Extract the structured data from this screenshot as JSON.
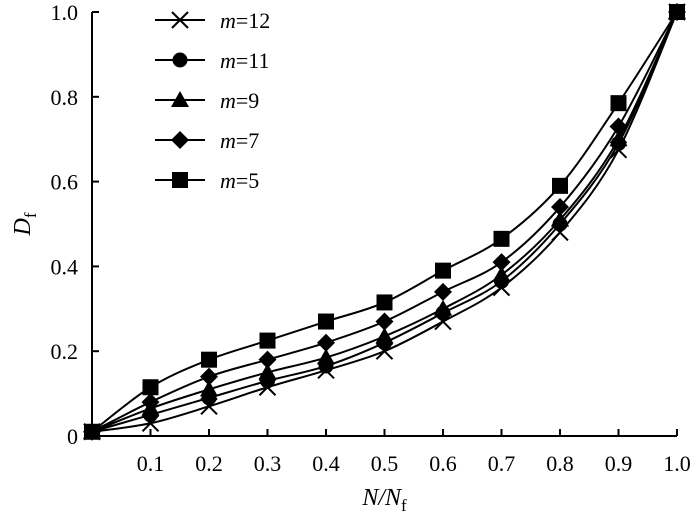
{
  "chart_data": {
    "type": "line",
    "title": "",
    "xlabel": {
      "main": "N/N",
      "sub": "f"
    },
    "ylabel": {
      "main": "D",
      "sub": "f"
    },
    "xlim": [
      0,
      1.0
    ],
    "ylim": [
      0,
      1.0
    ],
    "x": [
      0,
      0.1,
      0.2,
      0.3,
      0.4,
      0.5,
      0.6,
      0.7,
      0.8,
      0.9,
      1.0
    ],
    "x_tick_labels": [
      "0.1",
      "0.2",
      "0.3",
      "0.4",
      "0.5",
      "0.6",
      "0.7",
      "0.8",
      "0.9",
      "1.0"
    ],
    "y_tick_labels": [
      "0",
      "0.2",
      "0.4",
      "0.6",
      "0.8",
      "1.0"
    ],
    "grid": false,
    "legend_position": "top-left",
    "series": [
      {
        "name": "m=12",
        "m_var": "m",
        "m_val": "=12",
        "marker": "x",
        "values": [
          0.01,
          0.03,
          0.07,
          0.115,
          0.155,
          0.2,
          0.27,
          0.35,
          0.48,
          0.675,
          1.0
        ]
      },
      {
        "name": "m=11",
        "m_var": "m",
        "m_val": "=11",
        "marker": "circle",
        "values": [
          0.01,
          0.05,
          0.09,
          0.13,
          0.165,
          0.22,
          0.29,
          0.365,
          0.5,
          0.69,
          1.0
        ]
      },
      {
        "name": "m=9",
        "m_var": "m",
        "m_val": "=9",
        "marker": "triangle",
        "values": [
          0.01,
          0.065,
          0.11,
          0.15,
          0.185,
          0.235,
          0.3,
          0.38,
          0.51,
          0.7,
          1.0
        ]
      },
      {
        "name": "m=7",
        "m_var": "m",
        "m_val": "=7",
        "marker": "diamond",
        "values": [
          0.01,
          0.08,
          0.14,
          0.18,
          0.22,
          0.27,
          0.34,
          0.41,
          0.54,
          0.73,
          1.0
        ]
      },
      {
        "name": "m=5",
        "m_var": "m",
        "m_val": "=5",
        "marker": "square",
        "values": [
          0.01,
          0.115,
          0.18,
          0.225,
          0.27,
          0.315,
          0.39,
          0.465,
          0.59,
          0.785,
          1.0
        ]
      }
    ],
    "colors": {
      "line": "#000000",
      "marker": "#000000"
    }
  }
}
